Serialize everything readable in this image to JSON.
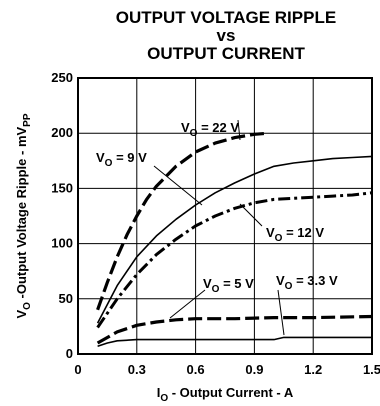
{
  "chart_data": {
    "type": "line",
    "title": [
      "OUTPUT VOLTAGE RIPPLE",
      "vs",
      "OUTPUT CURRENT"
    ],
    "xlabel": {
      "main": "I",
      "sub": "O",
      "rest": " - Output Current - A"
    },
    "ylabel": {
      "main": "V",
      "sub": "O",
      "rest": " -Output Voltage Ripple - mV",
      "unit_sub": "PP"
    },
    "xlim": [
      0,
      1.5
    ],
    "ylim": [
      0,
      250
    ],
    "xticks": [
      "0",
      "0.3",
      "0.6",
      "0.9",
      "1.2",
      "1.5"
    ],
    "xtick_values": [
      0,
      0.3,
      0.6,
      0.9,
      1.2,
      1.5
    ],
    "yticks": [
      "0",
      "50",
      "100",
      "150",
      "200",
      "250"
    ],
    "ytick_values": [
      0,
      50,
      100,
      150,
      200,
      250
    ],
    "grid": true,
    "series": [
      {
        "name": "V_O = 22 V",
        "label": {
          "main": "V",
          "sub": "O",
          "rest": " = 22 V"
        },
        "style": "long-dash",
        "x": [
          0.1,
          0.15,
          0.2,
          0.25,
          0.3,
          0.35,
          0.4,
          0.5,
          0.6,
          0.7,
          0.8,
          0.9,
          0.97
        ],
        "y": [
          40,
          65,
          88,
          108,
          125,
          140,
          152,
          170,
          183,
          191,
          196,
          199,
          200
        ]
      },
      {
        "name": "V_O = 9 V",
        "label": {
          "main": "V",
          "sub": "O",
          "rest": " = 9 V"
        },
        "style": "solid",
        "x": [
          0.1,
          0.2,
          0.3,
          0.4,
          0.5,
          0.6,
          0.7,
          0.8,
          0.9,
          1.0,
          1.1,
          1.2,
          1.3,
          1.4,
          1.5
        ],
        "y": [
          28,
          62,
          88,
          107,
          122,
          135,
          146,
          155,
          163,
          170,
          173,
          175,
          177,
          178,
          179
        ]
      },
      {
        "name": "V_O = 12 V",
        "label": {
          "main": "V",
          "sub": "O",
          "rest": " = 12 V"
        },
        "style": "dash-dot",
        "x": [
          0.1,
          0.2,
          0.3,
          0.4,
          0.5,
          0.6,
          0.7,
          0.8,
          0.9,
          1.0,
          1.1,
          1.2,
          1.3,
          1.4,
          1.5
        ],
        "y": [
          24,
          50,
          72,
          90,
          104,
          116,
          125,
          132,
          137,
          140,
          141,
          142,
          143,
          144,
          146
        ]
      },
      {
        "name": "V_O = 5 V",
        "label": {
          "main": "V",
          "sub": "O",
          "rest": " = 5 V"
        },
        "style": "long-dash",
        "x": [
          0.1,
          0.2,
          0.3,
          0.4,
          0.5,
          0.6,
          0.8,
          1.0,
          1.2,
          1.5
        ],
        "y": [
          10,
          20,
          26,
          29,
          31,
          32,
          32,
          33,
          33,
          34
        ]
      },
      {
        "name": "V_O = 3.3 V",
        "label": {
          "main": "V",
          "sub": "O",
          "rest": " = 3.3 V"
        },
        "style": "solid",
        "x": [
          0.1,
          0.15,
          0.2,
          0.3,
          0.4,
          0.6,
          0.8,
          1.0,
          1.05,
          1.2,
          1.5
        ],
        "y": [
          7,
          10,
          12,
          13,
          13,
          13,
          13,
          13,
          15,
          15,
          15
        ]
      }
    ]
  }
}
